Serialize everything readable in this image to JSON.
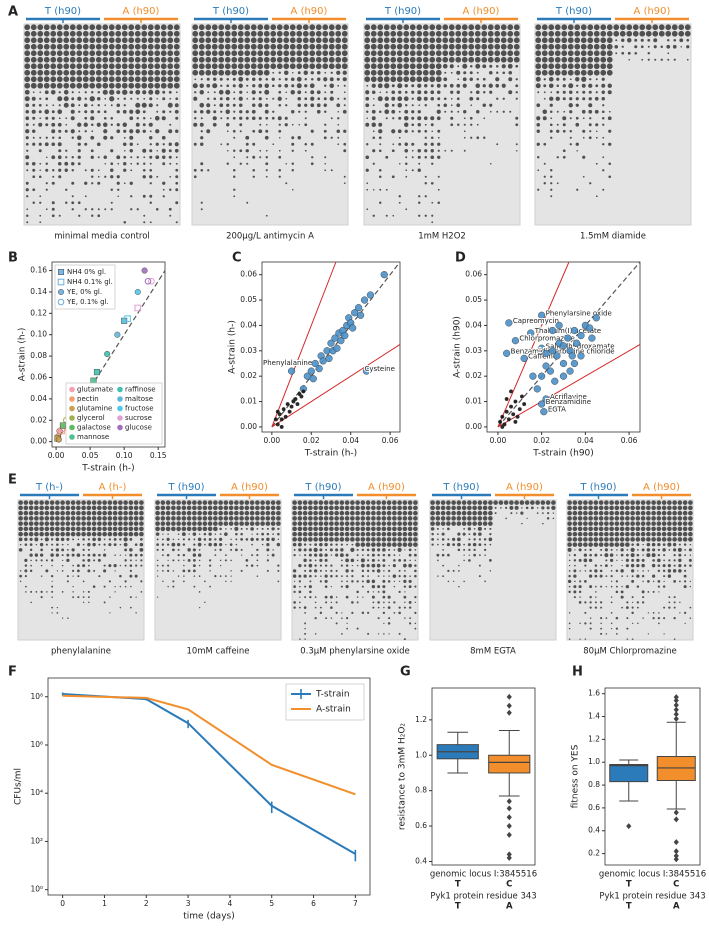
{
  "panel_labels": [
    "A",
    "B",
    "C",
    "D",
    "E",
    "F",
    "G",
    "H"
  ],
  "plates_A": [
    {
      "headers": [
        {
          "text": "T (h90)",
          "color": "#2b7bba"
        },
        {
          "text": "A (h90)",
          "color": "#f28e2b"
        }
      ],
      "caption": "minimal media control"
    },
    {
      "headers": [
        {
          "text": "T (h90)",
          "color": "#2b7bba"
        },
        {
          "text": "A (h90)",
          "color": "#f28e2b"
        }
      ],
      "caption": "200µg/L antimycin A"
    },
    {
      "headers": [
        {
          "text": "T (h90)",
          "color": "#2b7bba"
        },
        {
          "text": "A (h90)",
          "color": "#f28e2b"
        }
      ],
      "caption": "1mM H2O2"
    },
    {
      "headers": [
        {
          "text": "T (h90)",
          "color": "#2b7bba"
        },
        {
          "text": "A (h90)",
          "color": "#f28e2b"
        }
      ],
      "caption": "1.5mM diamide"
    }
  ],
  "plates_E": [
    {
      "headers": [
        {
          "text": "T (h-)",
          "color": "#2b7bba"
        },
        {
          "text": "A (h-)",
          "color": "#f28e2b"
        }
      ],
      "caption": "phenylalanine"
    },
    {
      "headers": [
        {
          "text": "T (h90)",
          "color": "#2b7bba"
        },
        {
          "text": "A (h90)",
          "color": "#f28e2b"
        }
      ],
      "caption": "10mM caffeine"
    },
    {
      "headers": [
        {
          "text": "T (h90)",
          "color": "#2b7bba"
        },
        {
          "text": "A (h90)",
          "color": "#f28e2b"
        }
      ],
      "caption": "0.3µM phenylarsine oxide"
    },
    {
      "headers": [
        {
          "text": "T (h90)",
          "color": "#2b7bba"
        },
        {
          "text": "A (h90)",
          "color": "#f28e2b"
        }
      ],
      "caption": "8mM EGTA"
    },
    {
      "headers": [
        {
          "text": "T (h90)",
          "color": "#2b7bba"
        },
        {
          "text": "A (h90)",
          "color": "#f28e2b"
        }
      ],
      "caption": "80µM Chlorpromazine"
    }
  ],
  "chart_data": [
    {
      "type": "scatter",
      "xlabel": "T-strain (h-)",
      "ylabel": "A-strain (h-)",
      "xlim": [
        -0.006,
        0.16
      ],
      "ylim": [
        -0.005,
        0.168
      ],
      "xticks": [
        {
          "value": 0,
          "label": "0.00"
        },
        0.05,
        {
          "value": 0.1,
          "label": "0.10"
        },
        0.15
      ],
      "yticks": [
        {
          "value": 0,
          "label": "0.00"
        },
        0.02,
        0.04,
        0.06,
        0.08,
        {
          "value": 0.1,
          "label": "0.10"
        },
        0.12,
        0.14,
        0.16
      ],
      "ref_lines": [
        {
          "slope": 1,
          "color": "#555555",
          "dashed": true
        }
      ],
      "marker_legend": {
        "color": "#6aaee0",
        "entries": [
          {
            "name": "NH4 0% gl.",
            "marker": "square"
          },
          {
            "name": "NH4 0.1% gl.",
            "marker": "open-square"
          },
          {
            "name": "YE, 0% gl.",
            "marker": "circle"
          },
          {
            "name": "YE, 0.1% gl.",
            "marker": "open-circle"
          }
        ]
      },
      "legend": "lower right",
      "series": [
        {
          "name": "glutamate",
          "color": "#f4a0b0",
          "x": [
            0.005,
            0.01
          ],
          "values": [
            0.01,
            0.012
          ],
          "markers": [
            "circle",
            "open-circle"
          ]
        },
        {
          "name": "pectin",
          "color": "#f0a070",
          "x": [
            0.003,
            0.008
          ],
          "values": [
            0.005,
            0.01
          ],
          "markers": [
            "circle",
            "open-square"
          ]
        },
        {
          "name": "glutamine",
          "color": "#c8a050",
          "x": [
            0.002,
            0.004
          ],
          "values": [
            0.003,
            0.002
          ],
          "markers": [
            "square",
            "circle"
          ]
        },
        {
          "name": "glycerol",
          "color": "#a0b050",
          "x": [
            0.015,
            0.02
          ],
          "values": [
            0.02,
            0.022
          ],
          "markers": [
            "open-circle",
            "circle"
          ]
        },
        {
          "name": "galactose",
          "color": "#60b860",
          "x": [
            0.01,
            0.02
          ],
          "values": [
            0.015,
            0.025
          ],
          "markers": [
            "square",
            "open-circle"
          ]
        },
        {
          "name": "mannose",
          "color": "#50c090",
          "x": [
            0.03,
            0.055
          ],
          "values": [
            0.035,
            0.057
          ],
          "markers": [
            "open-square",
            "square"
          ]
        },
        {
          "name": "raffinose",
          "color": "#40c0b0",
          "x": [
            0.06,
            0.075
          ],
          "values": [
            0.065,
            0.082
          ],
          "markers": [
            "square",
            "circle"
          ]
        },
        {
          "name": "maltose",
          "color": "#60b8d8",
          "x": [
            0.09,
            0.1
          ],
          "values": [
            0.1,
            0.113
          ],
          "markers": [
            "circle",
            "square"
          ]
        },
        {
          "name": "fructose",
          "color": "#50c8e8",
          "x": [
            0.105,
            0.12
          ],
          "values": [
            0.115,
            0.14
          ],
          "markers": [
            "open-square",
            "circle"
          ]
        },
        {
          "name": "sucrose",
          "color": "#e0a0d0",
          "x": [
            0.12,
            0.14
          ],
          "values": [
            0.125,
            0.15
          ],
          "markers": [
            "open-square",
            "open-circle"
          ]
        },
        {
          "name": "glucose",
          "color": "#a070c0",
          "x": [
            0.13,
            0.135
          ],
          "values": [
            0.16,
            0.15
          ],
          "markers": [
            "circle",
            "open-circle"
          ]
        }
      ]
    },
    {
      "type": "scatter",
      "xlabel": "T-strain (h-)",
      "ylabel": "A-strain (h-)",
      "xlim": [
        -0.005,
        0.065
      ],
      "ylim": [
        -0.002,
        0.065
      ],
      "xticks": [
        {
          "value": 0,
          "label": "0.00"
        },
        0.02,
        0.04,
        0.06
      ],
      "yticks": [
        {
          "value": 0,
          "label": "0.00"
        },
        0.01,
        0.02,
        0.03,
        0.04,
        0.05,
        0.06
      ],
      "ref_lines": [
        {
          "slope": 1,
          "color": "#555555",
          "dashed": true
        },
        {
          "slope": 2,
          "color": "#d62728"
        },
        {
          "slope": 0.5,
          "color": "#d62728"
        }
      ],
      "series": [
        {
          "color": "#4a90c8",
          "x": [
            0.01,
            0.048,
            0.016,
            0.018,
            0.02,
            0.021,
            0.022,
            0.024,
            0.025,
            0.026,
            0.028,
            0.029,
            0.03,
            0.031,
            0.032,
            0.033,
            0.034,
            0.035,
            0.036,
            0.037,
            0.038,
            0.039,
            0.04,
            0.041,
            0.042,
            0.044,
            0.045,
            0.047,
            0.05,
            0.057
          ],
          "values": [
            0.022,
            0.022,
            0.015,
            0.02,
            0.022,
            0.019,
            0.025,
            0.023,
            0.028,
            0.026,
            0.03,
            0.027,
            0.033,
            0.03,
            0.035,
            0.031,
            0.037,
            0.034,
            0.038,
            0.036,
            0.04,
            0.043,
            0.041,
            0.039,
            0.045,
            0.047,
            0.044,
            0.05,
            0.052,
            0.06
          ],
          "labels": [
            "Phenylalanine",
            "Cysteine",
            null,
            null,
            null,
            null,
            null,
            null,
            null,
            null,
            null,
            null,
            null,
            null,
            null,
            null,
            null,
            null,
            null,
            null,
            null,
            null,
            null,
            null,
            null,
            null,
            null,
            null,
            null,
            null
          ]
        },
        {
          "color": "#111111",
          "x": [
            0.002,
            0.003,
            0.004,
            0.005,
            0.006,
            0.007,
            0.008,
            0.009,
            0.01,
            0.011,
            0.012,
            0.013,
            0.014,
            0.015,
            0.016,
            0.005,
            0.003
          ],
          "values": [
            0.003,
            0.001,
            0.005,
            0.003,
            0.007,
            0.004,
            0.009,
            0.006,
            0.008,
            0.01,
            0.011,
            0.009,
            0.013,
            0.012,
            0.014,
            0.0,
            0.006
          ]
        }
      ]
    },
    {
      "type": "scatter",
      "xlabel": "T-strain (h90)",
      "ylabel": "A-strain (h90)",
      "xlim": [
        -0.005,
        0.065
      ],
      "ylim": [
        -0.002,
        0.065
      ],
      "xticks": [
        {
          "value": 0,
          "label": "0.00"
        },
        0.02,
        0.04,
        0.06
      ],
      "yticks": [
        {
          "value": 0,
          "label": "0.00"
        },
        0.01,
        0.02,
        0.03,
        0.04,
        0.05,
        0.06
      ],
      "ref_lines": [
        {
          "slope": 1,
          "color": "#555555",
          "dashed": true
        },
        {
          "slope": 2,
          "color": "#d62728"
        },
        {
          "slope": 0.5,
          "color": "#d62728"
        }
      ],
      "series": [
        {
          "color": "#4a90c8",
          "x": [
            0.02,
            0.005,
            0.015,
            0.008,
            0.02,
            0.004,
            0.012,
            0.022,
            0.022,
            0.02,
            0.021,
            0.025,
            0.027,
            0.028,
            0.03,
            0.03,
            0.032,
            0.033,
            0.034,
            0.035,
            0.036,
            0.038,
            0.04,
            0.042,
            0.045,
            0.02,
            0.022,
            0.024,
            0.018,
            0.016,
            0.026,
            0.03,
            0.033,
            0.028,
            0.025,
            0.038,
            0.043,
            0.035
          ],
          "values": [
            0.044,
            0.041,
            0.037,
            0.034,
            0.031,
            0.029,
            0.027,
            0.029,
            0.011,
            0.009,
            0.006,
            0.03,
            0.028,
            0.033,
            0.025,
            0.032,
            0.035,
            0.03,
            0.028,
            0.038,
            0.033,
            0.036,
            0.04,
            0.039,
            0.043,
            0.02,
            0.024,
            0.022,
            0.015,
            0.02,
            0.018,
            0.02,
            0.022,
            0.04,
            0.038,
            0.028,
            0.035,
            0.025
          ],
          "labels": [
            "Phenylarsine oxide",
            "Capreomycin",
            "Thallium(I) acetate",
            "Chlorpromazine",
            "Salicylhydroxamate",
            "Benzamidine",
            "Caffeine",
            "Berberine chloride",
            "Acriflavine",
            "Benzamidine",
            "EGTA",
            null,
            null,
            null,
            null,
            null,
            null,
            null,
            null,
            null,
            null,
            null,
            null,
            null,
            null,
            null,
            null,
            null,
            null,
            null,
            null,
            null,
            null,
            null,
            null,
            null,
            null,
            null
          ]
        },
        {
          "color": "#111111",
          "x": [
            0.001,
            0.002,
            0.003,
            0.004,
            0.005,
            0.006,
            0.007,
            0.008,
            0.009,
            0.01,
            0.011,
            0.012,
            0.002,
            0.004,
            0.006,
            0.008
          ],
          "values": [
            0.002,
            0.004,
            0.001,
            0.006,
            0.003,
            0.008,
            0.005,
            0.01,
            0.004,
            0.007,
            0.012,
            0.009,
            0.0,
            0.011,
            0.014,
            0.002
          ]
        }
      ]
    },
    {
      "type": "line",
      "xlabel": "time (days)",
      "ylabel": "CFUs/ml",
      "log_y": true,
      "xlim": [
        -0.35,
        7.35
      ],
      "ylim": [
        0.6,
        600000000.0
      ],
      "xticks": [
        0,
        1,
        2,
        3,
        4,
        5,
        6,
        7
      ],
      "yticks": [
        {
          "value": 1,
          "label": "10⁰"
        },
        {
          "value": 100,
          "label": "10²"
        },
        {
          "value": 10000,
          "label": "10⁴"
        },
        {
          "value": 1000000,
          "label": "10⁶"
        },
        {
          "value": 100000000,
          "label": "10⁸"
        }
      ],
      "legend": "upper right",
      "series": [
        {
          "name": "T-strain",
          "color": "#2b7bba",
          "x": [
            0,
            2,
            3,
            5,
            7
          ],
          "values": [
            130000000,
            80000000,
            8000000,
            3000,
            30
          ],
          "errors": [
            20000000,
            10000000,
            3000000,
            1500,
            15
          ]
        },
        {
          "name": "A-strain",
          "color": "#f28e2b",
          "x": [
            0,
            2,
            3,
            5,
            7
          ],
          "values": [
            110000000,
            90000000,
            30000000,
            150000,
            9000
          ]
        }
      ]
    },
    {
      "type": "box",
      "ylabel": "resistance to 3mM H₂O₂",
      "ylim": [
        0.38,
        1.38
      ],
      "yticks": [
        0.4,
        0.6,
        0.8,
        {
          "value": 1,
          "label": "1.0"
        },
        1.2
      ],
      "boxes": [
        {
          "color": "#2b7bba",
          "whislo": 0.9,
          "q1": 0.98,
          "median": 1.02,
          "q3": 1.06,
          "whishi": 1.13,
          "fliers": []
        },
        {
          "color": "#f28e2b",
          "whislo": 0.77,
          "q1": 0.9,
          "median": 0.96,
          "q3": 1.0,
          "whishi": 1.14,
          "fliers": [
            1.33,
            1.28,
            1.24,
            0.74,
            0.7,
            0.65,
            0.6,
            0.55,
            0.44,
            0.42
          ]
        }
      ],
      "group_labels": [
        {
          "title": "genomic locus I:3845516",
          "values": [
            "T",
            "C"
          ]
        },
        {
          "title": "Pyk1 protein residue 343",
          "values": [
            "T",
            "A"
          ]
        }
      ]
    },
    {
      "type": "box",
      "ylabel": "fitness on YES",
      "ylim": [
        0.1,
        1.65
      ],
      "yticks": [
        0.2,
        0.4,
        0.6,
        0.8,
        {
          "value": 1,
          "label": "1.0"
        },
        1.2,
        1.4,
        1.6
      ],
      "boxes": [
        {
          "color": "#2b7bba",
          "whislo": 0.66,
          "q1": 0.83,
          "median": 0.97,
          "q3": 0.98,
          "whishi": 1.02,
          "fliers": [
            0.44
          ]
        },
        {
          "color": "#f28e2b",
          "whislo": 0.59,
          "q1": 0.84,
          "median": 0.95,
          "q3": 1.05,
          "whishi": 1.35,
          "fliers": [
            1.38,
            1.42,
            1.46,
            1.5,
            1.54,
            1.57,
            0.56,
            0.5,
            0.3,
            0.22,
            0.18,
            0.15
          ]
        }
      ],
      "group_labels": [
        {
          "title": "genomic locus I:3845516",
          "values": [
            "T",
            "C"
          ]
        },
        {
          "title": "Pyk1 protein residue 343",
          "values": [
            "T",
            "A"
          ]
        }
      ]
    }
  ]
}
